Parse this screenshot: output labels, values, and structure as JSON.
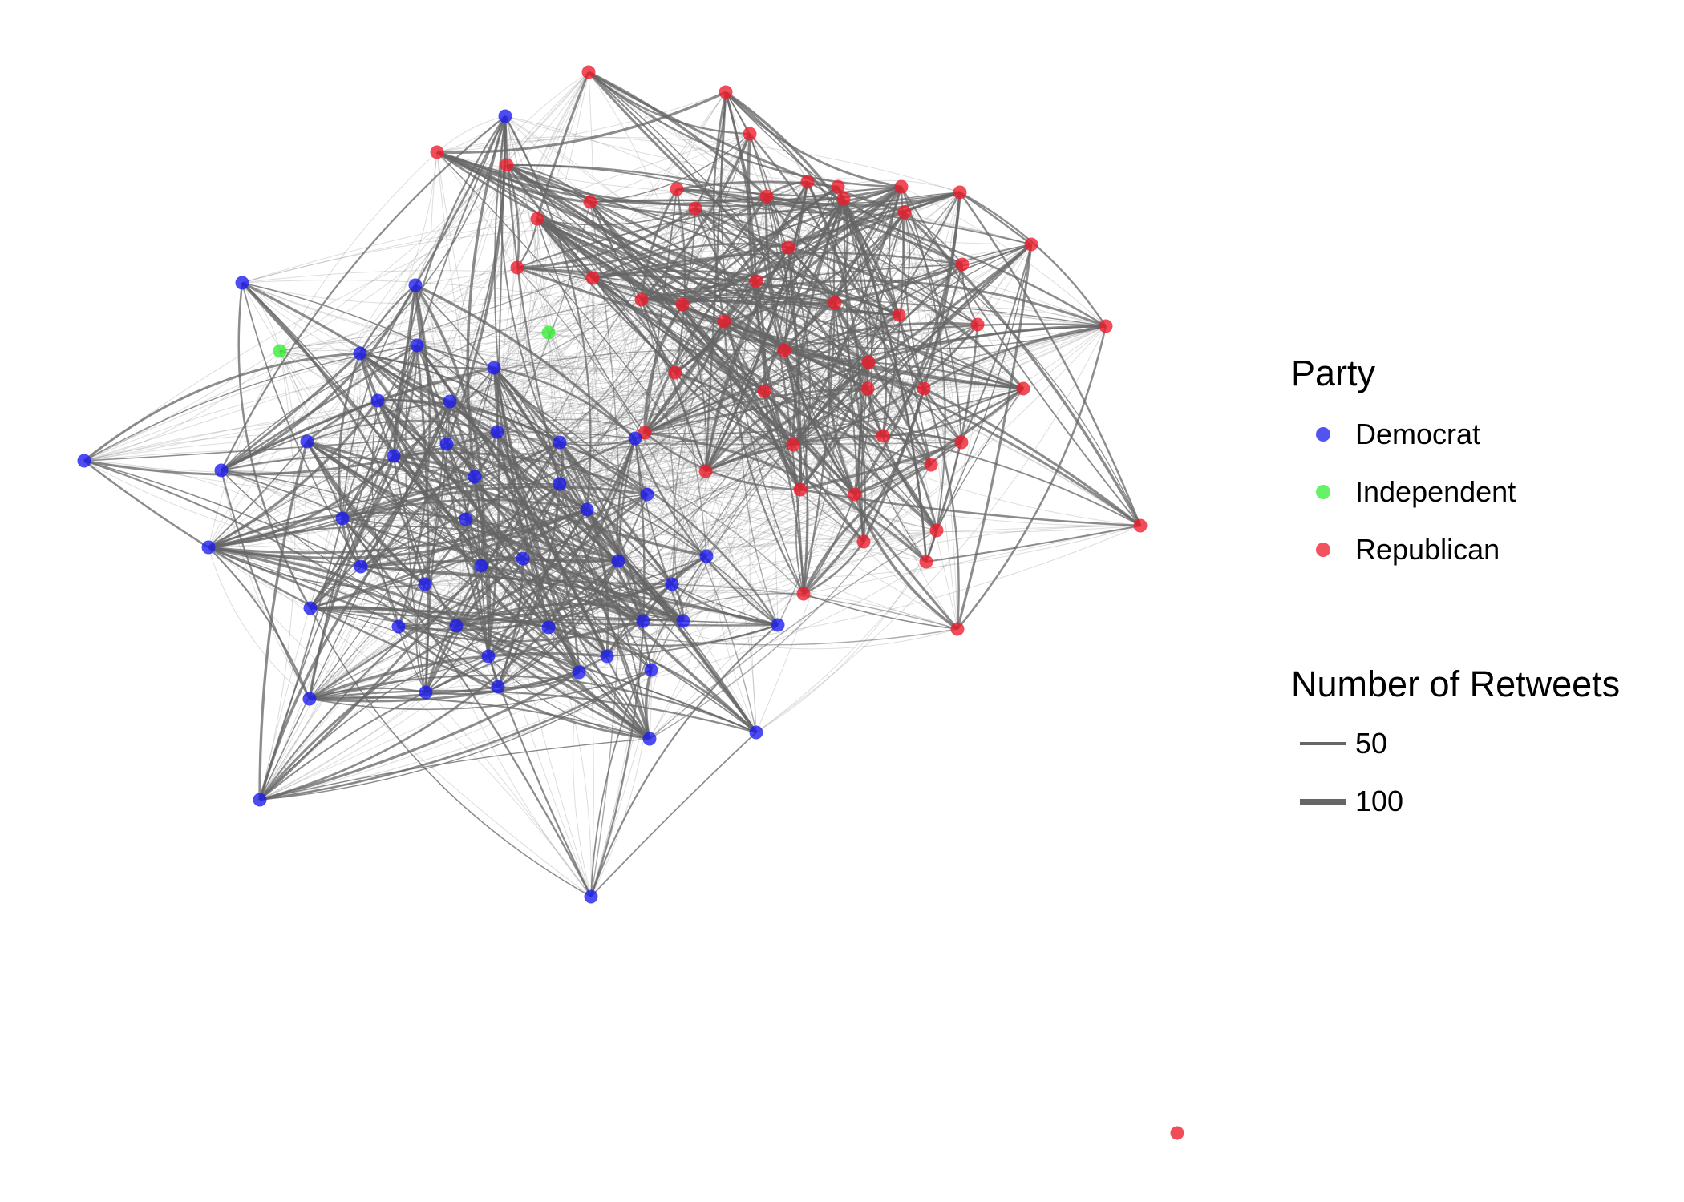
{
  "colors": {
    "Democrat": "#1a1aee",
    "Independent": "#33ee33",
    "Republican": "#ee1a2a",
    "edge": "#666666"
  },
  "legend": {
    "party": {
      "title": "Party",
      "items": [
        {
          "label": "Democrat",
          "color": "#1a1aee"
        },
        {
          "label": "Independent",
          "color": "#33ee33"
        },
        {
          "label": "Republican",
          "color": "#ee1a2a"
        }
      ]
    },
    "retweets": {
      "title": "Number of Retweets",
      "items": [
        {
          "label": "50",
          "value": 50
        },
        {
          "label": "100",
          "value": 100
        }
      ]
    }
  }
}
